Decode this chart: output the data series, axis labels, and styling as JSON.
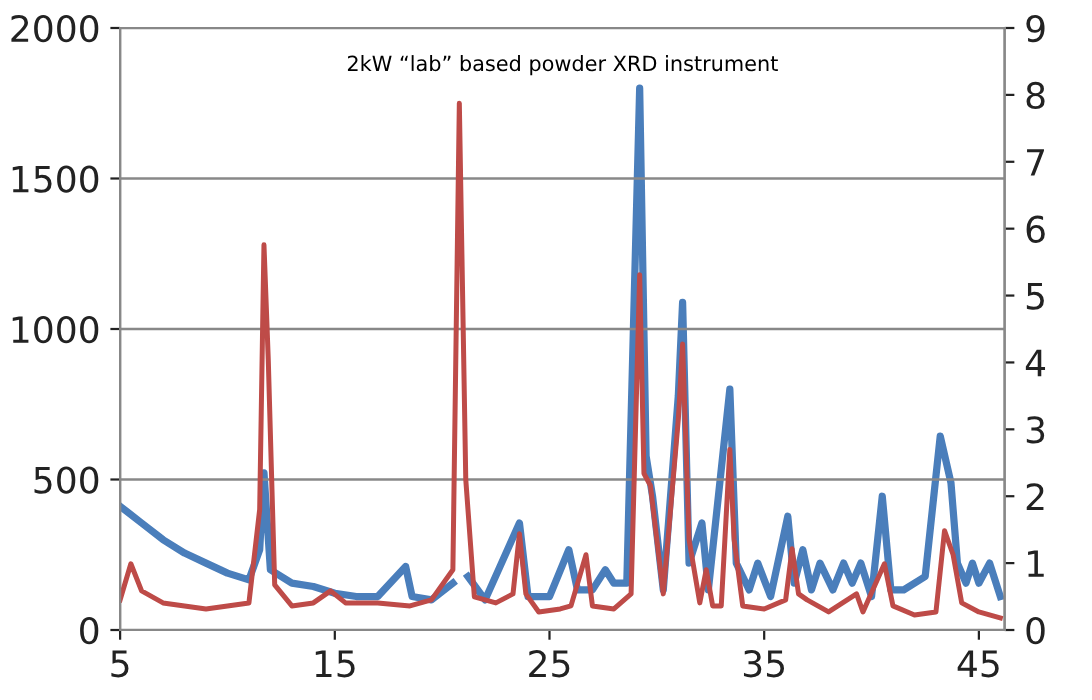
{
  "chart_data": {
    "type": "line",
    "title": "2kW “lab” based powder XRD instrument",
    "xlim": [
      5,
      46.2
    ],
    "xticks": [
      5,
      15,
      25,
      35,
      45
    ],
    "ylim": [
      0,
      2000
    ],
    "yticks": [
      0,
      500,
      1000,
      1500,
      2000
    ],
    "y2lim": [
      0,
      9
    ],
    "y2ticks": [
      0,
      1,
      2,
      3,
      4,
      5,
      6,
      7,
      8,
      9
    ],
    "grid": "y",
    "legend": false,
    "series": [
      {
        "color": "#4a7ebb",
        "axis": "y2",
        "x": [
          5,
          6,
          7,
          8,
          9,
          10,
          11,
          11.5,
          11.7,
          12,
          13,
          14,
          15,
          16,
          17,
          18.3,
          18.6,
          19.5,
          20.5,
          20.8,
          21.2,
          22,
          23.6,
          24,
          25,
          25.9,
          26.3,
          27,
          27.6,
          28,
          28.6,
          29.2,
          29.5,
          29.8,
          30.3,
          31,
          31.2,
          31.5,
          32.1,
          32.4,
          33.4,
          33.7,
          34.3,
          34.7,
          35.3,
          36.1,
          36.4,
          36.8,
          37.2,
          37.6,
          38.2,
          38.7,
          39.1,
          39.5,
          40,
          40.5,
          40.9,
          41.5,
          42.5,
          43.2,
          43.7,
          44,
          44.4,
          44.7,
          45,
          45.5,
          46
        ],
        "values": [
          1.85,
          1.6,
          1.35,
          1.15,
          1.0,
          0.85,
          0.75,
          1.2,
          2.35,
          0.9,
          0.7,
          0.65,
          0.55,
          0.5,
          0.5,
          0.95,
          0.5,
          0.45,
          0.7,
          null,
          0.8,
          0.45,
          1.6,
          0.5,
          0.5,
          1.2,
          0.6,
          0.6,
          0.9,
          0.7,
          0.7,
          8.1,
          2.6,
          2.0,
          0.6,
          3.5,
          4.9,
          1.0,
          1.6,
          0.6,
          3.6,
          1.0,
          0.6,
          1.0,
          0.5,
          1.7,
          0.7,
          1.2,
          0.6,
          1.0,
          0.6,
          1.0,
          0.7,
          1.0,
          0.5,
          2.0,
          0.6,
          0.6,
          0.8,
          2.9,
          2.2,
          1.0,
          0.7,
          1.0,
          0.7,
          1.0,
          0.5
        ]
      },
      {
        "color": "#be4b48",
        "x": [
          5,
          5.5,
          6,
          7,
          8,
          9,
          10,
          11,
          11.5,
          11.7,
          11.9,
          12.2,
          13,
          14,
          14.8,
          15.5,
          17,
          18.5,
          19.5,
          20.5,
          20.8,
          21.1,
          21.5,
          22.5,
          23.3,
          23.6,
          23.9,
          24.5,
          25.5,
          26,
          26.7,
          27,
          28,
          28.8,
          29.2,
          29.4,
          29.7,
          30.3,
          31,
          31.2,
          31.5,
          32,
          32.3,
          32.6,
          33,
          33.4,
          33.6,
          34,
          35,
          36,
          36.3,
          36.6,
          37,
          38,
          39.3,
          39.6,
          40.6,
          41,
          42,
          43,
          43.4,
          43.8,
          44.2,
          45,
          46
        ],
        "values": [
          100,
          220,
          130,
          90,
          80,
          70,
          80,
          90,
          400,
          1280,
          900,
          150,
          80,
          90,
          130,
          90,
          90,
          80,
          100,
          200,
          1750,
          500,
          110,
          90,
          120,
          320,
          120,
          60,
          70,
          80,
          250,
          80,
          70,
          120,
          1180,
          520,
          480,
          120,
          700,
          950,
          300,
          90,
          200,
          80,
          80,
          600,
          300,
          80,
          70,
          100,
          270,
          120,
          100,
          60,
          120,
          60,
          220,
          80,
          50,
          60,
          330,
          250,
          90,
          60,
          40
        ]
      }
    ]
  }
}
